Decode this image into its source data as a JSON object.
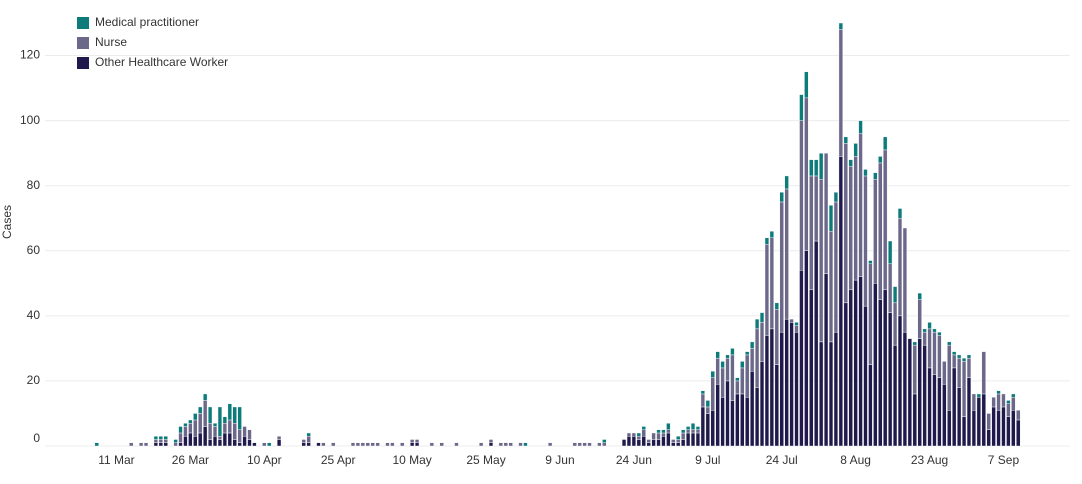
{
  "chart_data": {
    "type": "stacked-bar",
    "y_label": "Cases",
    "categories": [
      null,
      null,
      null,
      null,
      null,
      null,
      null,
      null,
      null,
      null,
      null,
      null,
      null,
      null,
      "11 Mar",
      null,
      null,
      null,
      null,
      null,
      null,
      null,
      null,
      null,
      null,
      null,
      null,
      null,
      null,
      "26 Mar",
      null,
      null,
      null,
      null,
      null,
      null,
      null,
      null,
      null,
      null,
      null,
      null,
      null,
      null,
      "10 Apr",
      null,
      null,
      null,
      null,
      null,
      null,
      null,
      null,
      null,
      null,
      null,
      null,
      null,
      null,
      "25 Apr",
      null,
      null,
      null,
      null,
      null,
      null,
      null,
      null,
      null,
      null,
      null,
      null,
      null,
      null,
      "10 May",
      null,
      null,
      null,
      null,
      null,
      null,
      null,
      null,
      null,
      null,
      null,
      null,
      null,
      null,
      "25 May",
      null,
      null,
      null,
      null,
      null,
      null,
      null,
      null,
      null,
      null,
      null,
      null,
      null,
      null,
      "9 Jun",
      null,
      null,
      null,
      null,
      null,
      null,
      null,
      null,
      null,
      null,
      null,
      null,
      null,
      null,
      "24 Jun",
      null,
      null,
      null,
      null,
      null,
      null,
      null,
      null,
      null,
      null,
      null,
      null,
      null,
      null,
      "9 Jul",
      null,
      null,
      null,
      null,
      null,
      null,
      null,
      null,
      null,
      null,
      null,
      null,
      null,
      null,
      "24 Jul",
      null,
      null,
      null,
      null,
      null,
      null,
      null,
      null,
      null,
      null,
      null,
      null,
      null,
      null,
      "8 Aug",
      null,
      null,
      null,
      null,
      null,
      null,
      null,
      null,
      null,
      null,
      null,
      null,
      null,
      null,
      "23 Aug",
      null,
      null,
      null,
      null,
      null,
      null,
      null,
      null,
      null,
      null,
      null,
      null,
      null,
      null,
      "7 Sep",
      null,
      null,
      null,
      null,
      null,
      null,
      null,
      null,
      null,
      null,
      null,
      null,
      null
    ],
    "series": [
      {
        "name": "Medical practitioner",
        "color": "#0e7b7b",
        "values": [
          0,
          0,
          0,
          0,
          0,
          0,
          0,
          0,
          0,
          0,
          1,
          0,
          0,
          0,
          0,
          0,
          0,
          0,
          0,
          0,
          0,
          0,
          1,
          1,
          1,
          0,
          1,
          2,
          1,
          1,
          2,
          2,
          2,
          5,
          1,
          9,
          2,
          5,
          5,
          7,
          0,
          0,
          0,
          0,
          0,
          1,
          0,
          0,
          0,
          0,
          0,
          0,
          0,
          1,
          0,
          0,
          0,
          0,
          0,
          0,
          0,
          0,
          0,
          0,
          0,
          0,
          0,
          0,
          0,
          0,
          0,
          0,
          0,
          0,
          0,
          0,
          0,
          0,
          0,
          0,
          0,
          0,
          0,
          0,
          0,
          0,
          0,
          0,
          0,
          0,
          0,
          0,
          0,
          0,
          0,
          0,
          0,
          1,
          0,
          0,
          0,
          0,
          0,
          0,
          0,
          0,
          0,
          0,
          0,
          0,
          0,
          0,
          0,
          1,
          0,
          0,
          0,
          0,
          0,
          0,
          1,
          1,
          0,
          0,
          1,
          1,
          2,
          0,
          1,
          1,
          1,
          2,
          1,
          1,
          2,
          2,
          2,
          2,
          1,
          2,
          1,
          2,
          1,
          2,
          3,
          3,
          2,
          2,
          2,
          3,
          4,
          0,
          1,
          8,
          8,
          5,
          5,
          8,
          0,
          8,
          3,
          2,
          2,
          2,
          4,
          4,
          2,
          1,
          2,
          2,
          4,
          7,
          5,
          3,
          0,
          0,
          1,
          2,
          1,
          2,
          1,
          1,
          0,
          1,
          1,
          1,
          1,
          1,
          0,
          1,
          0,
          0,
          0,
          1,
          0,
          1,
          1,
          0,
          0,
          0,
          0,
          0,
          0,
          0,
          0,
          0,
          0,
          0
        ]
      },
      {
        "name": "Nurse",
        "color": "#6b6889",
        "values": [
          0,
          0,
          0,
          0,
          0,
          0,
          0,
          0,
          0,
          0,
          0,
          0,
          0,
          0,
          0,
          0,
          0,
          1,
          0,
          1,
          1,
          0,
          1,
          1,
          1,
          0,
          1,
          3,
          3,
          3,
          5,
          6,
          8,
          5,
          3,
          1,
          3,
          4,
          5,
          4,
          3,
          3,
          0,
          0,
          1,
          0,
          0,
          1,
          0,
          0,
          0,
          0,
          1,
          2,
          0,
          0,
          1,
          0,
          1,
          0,
          0,
          0,
          1,
          1,
          1,
          1,
          1,
          1,
          0,
          1,
          1,
          0,
          1,
          0,
          1,
          1,
          0,
          0,
          1,
          0,
          1,
          0,
          0,
          1,
          0,
          0,
          0,
          0,
          1,
          0,
          1,
          0,
          1,
          1,
          1,
          0,
          1,
          0,
          0,
          0,
          0,
          0,
          1,
          0,
          0,
          0,
          0,
          1,
          1,
          1,
          1,
          0,
          1,
          1,
          0,
          0,
          0,
          0,
          1,
          1,
          1,
          2,
          1,
          2,
          2,
          1,
          1,
          1,
          1,
          2,
          1,
          1,
          1,
          4,
          2,
          10,
          8,
          9,
          7,
          14,
          4,
          8,
          13,
          7,
          18,
          12,
          28,
          28,
          17,
          40,
          40,
          1,
          2,
          46,
          47,
          35,
          20,
          50,
          37,
          34,
          40,
          39,
          49,
          38,
          38,
          44,
          40,
          31,
          32,
          42,
          43,
          15,
          13,
          30,
          32,
          0,
          15,
          12,
          4,
          12,
          13,
          13,
          7,
          20,
          4,
          9,
          17,
          6,
          5,
          0,
          13,
          5,
          3,
          5,
          4,
          4,
          4,
          3,
          0,
          0,
          0,
          0,
          0,
          0,
          0,
          0,
          0,
          0
        ]
      },
      {
        "name": "Other Healthcare Worker",
        "color": "#1f1a4b",
        "values": [
          0,
          0,
          0,
          0,
          0,
          0,
          0,
          0,
          0,
          0,
          0,
          0,
          0,
          0,
          0,
          0,
          0,
          0,
          0,
          0,
          0,
          0,
          1,
          1,
          1,
          0,
          0,
          1,
          3,
          4,
          3,
          4,
          6,
          2,
          3,
          2,
          4,
          4,
          2,
          1,
          3,
          2,
          1,
          0,
          0,
          0,
          0,
          2,
          0,
          0,
          0,
          0,
          1,
          1,
          0,
          1,
          0,
          0,
          0,
          0,
          0,
          0,
          0,
          0,
          0,
          0,
          0,
          0,
          0,
          0,
          0,
          0,
          0,
          0,
          1,
          1,
          0,
          0,
          0,
          0,
          0,
          0,
          0,
          0,
          0,
          0,
          0,
          0,
          0,
          0,
          1,
          0,
          0,
          0,
          0,
          0,
          0,
          0,
          0,
          0,
          0,
          0,
          0,
          0,
          0,
          0,
          0,
          0,
          0,
          0,
          0,
          0,
          0,
          0,
          0,
          0,
          0,
          2,
          3,
          3,
          2,
          3,
          1,
          2,
          2,
          3,
          4,
          1,
          1,
          2,
          4,
          4,
          4,
          12,
          10,
          11,
          19,
          15,
          20,
          14,
          16,
          16,
          15,
          23,
          18,
          26,
          34,
          36,
          25,
          35,
          39,
          38,
          35,
          54,
          60,
          48,
          63,
          32,
          53,
          32,
          35,
          89,
          44,
          48,
          51,
          52,
          43,
          25,
          50,
          45,
          48,
          41,
          31,
          40,
          35,
          33,
          16,
          33,
          31,
          24,
          22,
          21,
          19,
          11,
          24,
          18,
          9,
          21,
          11,
          15,
          16,
          5,
          12,
          11,
          12,
          9,
          11,
          8,
          0,
          0,
          0,
          0,
          0,
          0,
          0,
          0,
          0,
          0
        ]
      }
    ],
    "ylim": [
      0,
      134
    ],
    "yticks": [
      0,
      20,
      40,
      60,
      80,
      100,
      120
    ],
    "grid": true,
    "legend": "top-left"
  }
}
